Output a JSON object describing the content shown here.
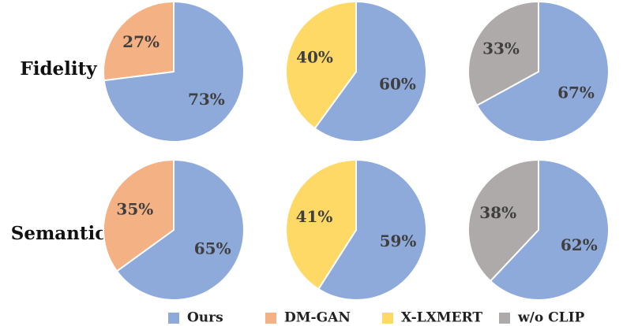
{
  "chart_data": {
    "type": "pie",
    "colors": {
      "Ours": "#8eaadb",
      "DM-GAN": "#f4b183",
      "X-LXMERT": "#ffd966",
      "w/o CLIP": "#aeaaaa"
    },
    "legend": {
      "placement": "bottom",
      "entries": [
        "Ours",
        "DM-GAN",
        "X-LXMERT",
        "w/o CLIP"
      ]
    },
    "rows": [
      {
        "label": "Fidelity",
        "pies": [
          {
            "slices": [
              {
                "name": "Ours",
                "value": 73,
                "label": "73%"
              },
              {
                "name": "DM-GAN",
                "value": 27,
                "label": "27%"
              }
            ]
          },
          {
            "slices": [
              {
                "name": "Ours",
                "value": 60,
                "label": "60%"
              },
              {
                "name": "X-LXMERT",
                "value": 40,
                "label": "40%"
              }
            ]
          },
          {
            "slices": [
              {
                "name": "Ours",
                "value": 67,
                "label": "67%"
              },
              {
                "name": "w/o CLIP",
                "value": 33,
                "label": "33%"
              }
            ]
          }
        ]
      },
      {
        "label": "Semantic",
        "pies": [
          {
            "slices": [
              {
                "name": "Ours",
                "value": 65,
                "label": "65%"
              },
              {
                "name": "DM-GAN",
                "value": 35,
                "label": "35%"
              }
            ]
          },
          {
            "slices": [
              {
                "name": "Ours",
                "value": 59,
                "label": "59%"
              },
              {
                "name": "X-LXMERT",
                "value": 41,
                "label": "41%"
              }
            ]
          },
          {
            "slices": [
              {
                "name": "Ours",
                "value": 62,
                "label": "62%"
              },
              {
                "name": "w/o CLIP",
                "value": 38,
                "label": "38%"
              }
            ]
          }
        ]
      }
    ]
  }
}
